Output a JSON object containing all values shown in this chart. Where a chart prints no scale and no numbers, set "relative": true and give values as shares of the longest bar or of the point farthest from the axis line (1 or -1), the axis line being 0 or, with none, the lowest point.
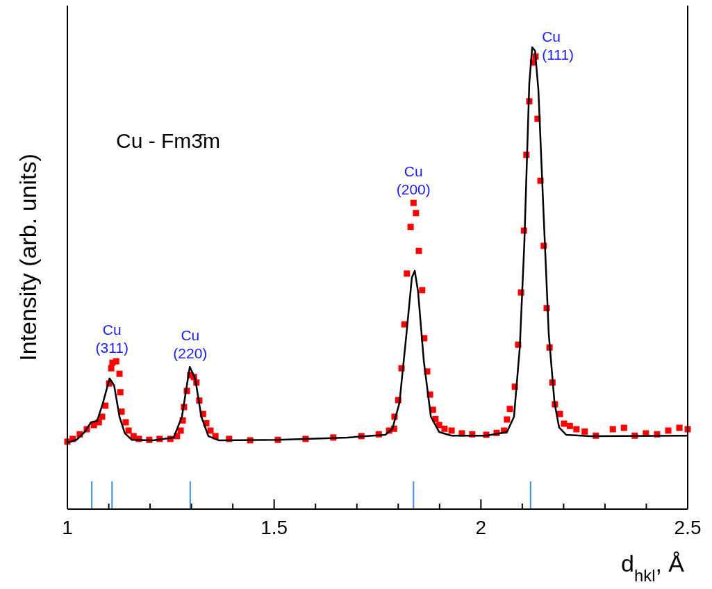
{
  "chart_data": {
    "type": "scatter",
    "relative": true,
    "xlabel": "d$_{hkl}$, Å",
    "ylabel": "Intensity (arb. units)",
    "xlim": [
      1,
      2.5
    ],
    "xticks": [
      1,
      {
        "value": 1.1,
        "label": null
      },
      {
        "value": 1.2,
        "label": null
      },
      {
        "value": 1.3,
        "label": null
      },
      {
        "value": 1.4,
        "label": null
      },
      1.5,
      {
        "value": 1.6,
        "label": null
      },
      {
        "value": 1.7,
        "label": null
      },
      {
        "value": 1.8,
        "label": null
      },
      {
        "value": 1.9,
        "label": null
      },
      2,
      {
        "value": 2.1,
        "label": null
      },
      {
        "value": 2.2,
        "label": null
      },
      {
        "value": 2.3,
        "label": null
      },
      {
        "value": 2.4,
        "label": null
      },
      2.5
    ],
    "grid": false,
    "annotations": [
      "Cu - Fm3̄m",
      {
        "text": "Cu\n(311)",
        "x": 1.108,
        "y": 0.32
      },
      {
        "text": "Cu\n(220)",
        "x": 1.297,
        "y": 0.308
      },
      {
        "text": "Cu\n(200)",
        "x": 1.837,
        "y": 0.663
      },
      {
        "text": "Cu\n(111)",
        "x": 2.124,
        "y": 1.0
      }
    ],
    "series": [
      {
        "type": "bar",
        "color": "#3d8fe0",
        "x": [
          1.059,
          1.108,
          1.297,
          1.837,
          2.12
        ],
        "values": [
          0.06,
          0.06,
          0.06,
          0.06,
          0.06
        ]
      },
      {
        "color": "#ff0000",
        "marker": "square",
        "x": [
          1.0,
          1.013,
          1.03,
          1.047,
          1.064,
          1.076,
          1.084,
          1.092,
          1.101,
          1.106,
          1.109,
          1.118,
          1.126,
          1.128,
          1.131,
          1.141,
          1.148,
          1.16,
          1.173,
          1.198,
          1.223,
          1.249,
          1.265,
          1.274,
          1.279,
          1.282,
          1.289,
          1.297,
          1.306,
          1.312,
          1.319,
          1.328,
          1.336,
          1.346,
          1.358,
          1.391,
          1.442,
          1.509,
          1.576,
          1.643,
          1.711,
          1.753,
          1.778,
          1.79,
          1.791,
          1.8,
          1.808,
          1.815,
          1.821,
          1.83,
          1.837,
          1.843,
          1.85,
          1.858,
          1.863,
          1.87,
          1.877,
          1.884,
          1.89,
          1.899,
          1.912,
          1.929,
          1.954,
          1.979,
          2.013,
          2.038,
          2.056,
          2.063,
          2.07,
          2.082,
          2.09,
          2.097,
          2.104,
          2.11,
          2.117,
          2.126,
          2.132,
          2.137,
          2.144,
          2.152,
          2.159,
          2.166,
          2.173,
          2.179,
          2.191,
          2.201,
          2.215,
          2.231,
          2.251,
          2.278,
          2.319,
          2.346,
          2.372,
          2.399,
          2.426,
          2.453,
          2.48,
          2.5
        ],
        "values": [
          0.146,
          0.152,
          0.162,
          0.173,
          0.182,
          0.188,
          0.2,
          0.224,
          0.272,
          0.305,
          0.317,
          0.32,
          0.293,
          0.253,
          0.211,
          0.188,
          0.17,
          0.158,
          0.152,
          0.15,
          0.152,
          0.152,
          0.158,
          0.17,
          0.192,
          0.221,
          0.256,
          0.29,
          0.286,
          0.274,
          0.235,
          0.206,
          0.186,
          0.17,
          0.158,
          0.152,
          0.149,
          0.15,
          0.152,
          0.155,
          0.158,
          0.162,
          0.17,
          0.174,
          0.2,
          0.236,
          0.305,
          0.4,
          0.51,
          0.611,
          0.663,
          0.641,
          0.559,
          0.474,
          0.37,
          0.298,
          0.248,
          0.215,
          0.195,
          0.182,
          0.174,
          0.17,
          0.164,
          0.162,
          0.161,
          0.165,
          0.17,
          0.194,
          0.217,
          0.265,
          0.356,
          0.469,
          0.603,
          0.767,
          0.883,
          0.967,
          0.98,
          0.845,
          0.711,
          0.57,
          0.435,
          0.35,
          0.274,
          0.227,
          0.206,
          0.185,
          0.18,
          0.173,
          0.168,
          0.159,
          0.173,
          0.176,
          0.159,
          0.164,
          0.162,
          0.17,
          0.176,
          0.173
        ]
      },
      {
        "type": "line",
        "color": "#000000",
        "marker": "none",
        "x": [
          1.0,
          1.022,
          1.042,
          1.057,
          1.072,
          1.086,
          1.102,
          1.113,
          1.126,
          1.139,
          1.156,
          1.207,
          1.257,
          1.277,
          1.296,
          1.309,
          1.324,
          1.341,
          1.366,
          1.509,
          1.677,
          1.769,
          1.786,
          1.803,
          1.82,
          1.833,
          1.84,
          1.848,
          1.862,
          1.879,
          1.899,
          1.929,
          2.013,
          2.063,
          2.08,
          2.094,
          2.105,
          2.117,
          2.124,
          2.131,
          2.139,
          2.151,
          2.164,
          2.178,
          2.189,
          2.206,
          2.265,
          2.5
        ],
        "values": [
          0.144,
          0.15,
          0.167,
          0.188,
          0.191,
          0.23,
          0.283,
          0.268,
          0.2,
          0.164,
          0.15,
          0.149,
          0.155,
          0.2,
          0.308,
          0.283,
          0.2,
          0.158,
          0.149,
          0.15,
          0.155,
          0.161,
          0.174,
          0.23,
          0.38,
          0.501,
          0.516,
          0.471,
          0.32,
          0.2,
          0.167,
          0.159,
          0.159,
          0.167,
          0.2,
          0.35,
          0.576,
          0.922,
          1.0,
          0.992,
          0.907,
          0.651,
          0.38,
          0.23,
          0.177,
          0.161,
          0.158,
          0.159
        ]
      }
    ]
  }
}
